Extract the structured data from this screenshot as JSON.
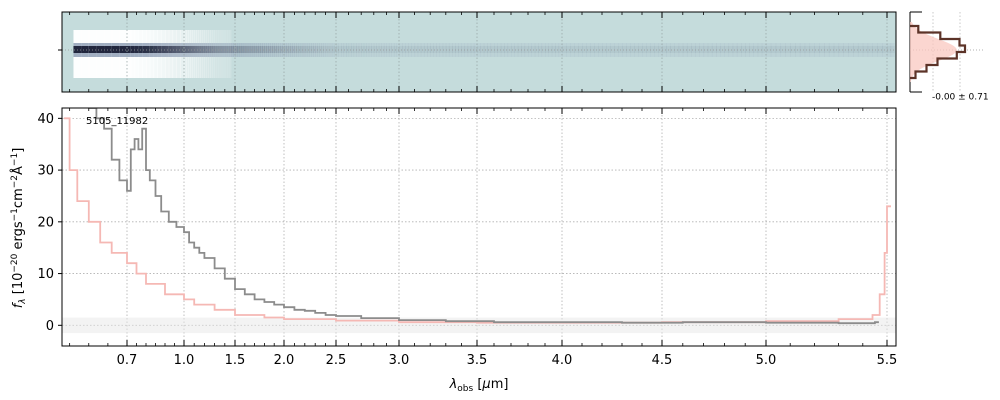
{
  "chart_data": [
    {
      "type": "heatmap",
      "panel": "2D spectrum",
      "x_range_um": [
        0.53,
        5.55
      ],
      "colors": {
        "background": "#c5dcdc",
        "trace_dark": "#1a1f36",
        "trace_mid": "#8a9ab2",
        "gap": "#ffffff"
      },
      "trace_profile": [
        {
          "x": 0.55,
          "intensity": 1.0
        },
        {
          "x": 0.7,
          "intensity": 1.0
        },
        {
          "x": 0.8,
          "intensity": 0.95
        },
        {
          "x": 1.0,
          "intensity": 0.75
        },
        {
          "x": 1.3,
          "intensity": 0.55
        },
        {
          "x": 1.6,
          "intensity": 0.45
        },
        {
          "x": 2.0,
          "intensity": 0.35
        },
        {
          "x": 2.5,
          "intensity": 0.22
        },
        {
          "x": 3.0,
          "intensity": 0.15
        },
        {
          "x": 4.0,
          "intensity": 0.1
        },
        {
          "x": 5.0,
          "intensity": 0.08
        },
        {
          "x": 5.5,
          "intensity": 0.12
        }
      ]
    },
    {
      "type": "histogram",
      "panel": "residual distribution",
      "annotation": "-0.00 ± 0.71",
      "series": [
        {
          "name": "",
          "color": "#5c3328",
          "values": [
            0.15,
            0.55,
            0.9,
            1.0,
            0.85,
            0.5,
            0.3,
            0.1
          ]
        }
      ],
      "fill_color": "#f9c8c0"
    },
    {
      "type": "line",
      "panel": "1D spectrum",
      "annotation": "5105_11982",
      "xlabel": "λ_obs [μm]",
      "ylabel": "f_λ [10⁻²⁰ ergs⁻¹cm⁻²Å⁻¹]",
      "xlim": [
        0.53,
        5.55
      ],
      "ylim": [
        -4,
        42
      ],
      "x_scale": "nonlinear (compressed at short wavelengths)",
      "x_ticks": [
        "0.7",
        "1.0",
        "1.5",
        "2.0",
        "2.5",
        "3.0",
        "3.5",
        "4.0",
        "4.5",
        "5.0",
        "5.5"
      ],
      "y_ticks": [
        "0",
        "10",
        "20",
        "30",
        "40"
      ],
      "grid": true,
      "series": [
        {
          "name": "",
          "color": "#8c8c8c",
          "style": "steps",
          "x": [
            0.6,
            0.62,
            0.64,
            0.66,
            0.68,
            0.7,
            0.72,
            0.74,
            0.76,
            0.78,
            0.8,
            0.82,
            0.85,
            0.88,
            0.92,
            0.96,
            1.0,
            1.05,
            1.1,
            1.15,
            1.2,
            1.3,
            1.4,
            1.5,
            1.6,
            1.7,
            1.8,
            1.9,
            2.0,
            2.1,
            2.2,
            2.3,
            2.4,
            2.5,
            2.7,
            3.0,
            3.3,
            3.6,
            4.0,
            4.3,
            4.6,
            5.0,
            5.3,
            5.45
          ],
          "y": [
            42,
            40,
            38,
            32,
            28,
            26,
            34,
            36,
            34,
            38,
            30,
            28,
            25,
            22,
            20,
            19,
            18,
            16,
            15,
            14,
            13,
            11,
            9,
            7,
            6,
            5,
            4.5,
            4,
            3.5,
            3,
            2.8,
            2.4,
            2,
            1.8,
            1.4,
            1.0,
            0.8,
            0.6,
            0.6,
            0.5,
            0.6,
            0.5,
            0.4,
            0.6
          ]
        },
        {
          "name": "",
          "color": "#f5b8b4",
          "style": "steps",
          "x": [
            0.535,
            0.55,
            0.57,
            0.6,
            0.63,
            0.66,
            0.7,
            0.75,
            0.8,
            0.9,
            1.0,
            1.1,
            1.3,
            1.5,
            1.8,
            2.0,
            2.5,
            3.0,
            3.5,
            4.0,
            4.5,
            5.0,
            5.3,
            5.44,
            5.47,
            5.49,
            5.5
          ],
          "y": [
            40,
            30,
            24,
            20,
            16,
            14,
            12,
            10,
            8,
            6,
            5,
            4,
            3,
            2,
            1.5,
            1.2,
            0.9,
            0.6,
            0.5,
            0.5,
            0.6,
            0.8,
            1.2,
            2,
            6,
            14,
            23
          ]
        }
      ]
    }
  ]
}
